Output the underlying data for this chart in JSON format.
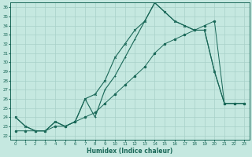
{
  "xlabel": "Humidex (Indice chaleur)",
  "bg_color": "#c5e8e0",
  "grid_color": "#a8d0c8",
  "line_color": "#1a6858",
  "xlim": [
    -0.5,
    23.5
  ],
  "ylim": [
    21.5,
    36.5
  ],
  "x_ticks": [
    0,
    1,
    2,
    3,
    4,
    5,
    6,
    7,
    8,
    9,
    10,
    11,
    12,
    13,
    14,
    15,
    16,
    17,
    18,
    19,
    20,
    21,
    22,
    23
  ],
  "y_ticks": [
    22,
    23,
    24,
    25,
    26,
    27,
    28,
    29,
    30,
    31,
    32,
    33,
    34,
    35,
    36
  ],
  "series1_x": [
    0,
    1,
    2,
    3,
    4,
    5,
    6,
    7,
    8,
    9,
    10,
    11,
    12,
    13,
    14,
    15,
    16,
    17,
    18,
    19,
    20,
    21,
    22,
    23
  ],
  "series1_y": [
    24.0,
    23.0,
    22.5,
    22.5,
    23.5,
    23.0,
    23.5,
    26.0,
    24.0,
    27.0,
    28.5,
    30.5,
    32.5,
    34.5,
    36.5,
    35.5,
    34.5,
    34.0,
    33.5,
    33.5,
    29.0,
    25.5,
    25.5,
    25.5
  ],
  "series2_x": [
    0,
    1,
    2,
    3,
    4,
    5,
    6,
    7,
    8,
    9,
    10,
    11,
    12,
    13,
    14,
    15,
    16,
    17,
    18,
    19,
    20,
    21,
    22,
    23
  ],
  "series2_y": [
    24.0,
    23.0,
    22.5,
    22.5,
    23.5,
    23.0,
    23.5,
    26.0,
    26.5,
    28.0,
    30.5,
    32.0,
    33.5,
    34.5,
    36.5,
    35.5,
    34.5,
    34.0,
    33.5,
    33.5,
    29.0,
    25.5,
    25.5,
    25.5
  ],
  "series3_x": [
    0,
    1,
    2,
    3,
    4,
    5,
    6,
    7,
    8,
    9,
    10,
    11,
    12,
    13,
    14,
    15,
    16,
    17,
    18,
    19,
    20,
    21,
    22,
    23
  ],
  "series3_y": [
    22.5,
    22.5,
    22.5,
    22.5,
    23.0,
    23.0,
    23.5,
    24.0,
    24.5,
    25.5,
    26.5,
    27.5,
    28.5,
    29.5,
    31.0,
    32.0,
    32.5,
    33.0,
    33.5,
    34.0,
    34.5,
    25.5,
    25.5,
    25.5
  ]
}
